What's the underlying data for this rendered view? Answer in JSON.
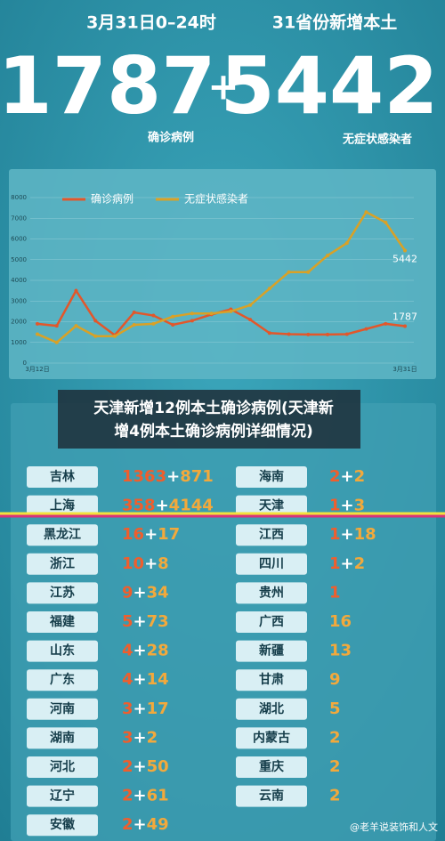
{
  "header": {
    "date": "3月31日0–24时",
    "scope": "31省份新增本土",
    "confirmed": "1787",
    "plus": "+",
    "asymptomatic": "5442",
    "confirmed_label": "确诊病例",
    "asymptomatic_label": "无症状感染者"
  },
  "chart_data": {
    "type": "line",
    "categories": [
      "3月12日",
      null,
      null,
      null,
      null,
      null,
      null,
      null,
      null,
      null,
      null,
      null,
      null,
      null,
      null,
      null,
      null,
      null,
      null,
      "3月31日"
    ],
    "series": [
      {
        "name": "确诊病例",
        "color": "#e2572b",
        "values": [
          1900,
          1800,
          3500,
          2050,
          1350,
          2450,
          2300,
          1850,
          2050,
          2350,
          2600,
          2100,
          1450,
          1400,
          1380,
          1380,
          1400,
          1650,
          1900,
          1787
        ]
      },
      {
        "name": "无症状感染者",
        "color": "#d9a126",
        "values": [
          1400,
          1000,
          1800,
          1300,
          1300,
          1850,
          1900,
          2250,
          2400,
          2400,
          2500,
          2800,
          3600,
          4400,
          4400,
          5200,
          5800,
          7300,
          6800,
          5442
        ]
      }
    ],
    "ylim": [
      0,
      8000
    ],
    "yticks": [
      0,
      1000,
      2000,
      3000,
      4000,
      5000,
      6000,
      7000,
      8000
    ],
    "grid": true
  },
  "caption": {
    "lines": [
      "天津新增12例本土确诊病例(天津新",
      "增4例本土确诊病例详细情况)"
    ]
  },
  "table": {
    "separator": "+",
    "left": [
      {
        "name": "吉林",
        "confirmed": 1363,
        "asymptomatic": 871
      },
      {
        "name": "上海",
        "confirmed": 358,
        "asymptomatic": 4144
      },
      {
        "name": "黑龙江",
        "confirmed": 16,
        "asymptomatic": 17
      },
      {
        "name": "浙江",
        "confirmed": 10,
        "asymptomatic": 8
      },
      {
        "name": "江苏",
        "confirmed": 9,
        "asymptomatic": 34
      },
      {
        "name": "福建",
        "confirmed": 5,
        "asymptomatic": 73
      },
      {
        "name": "山东",
        "confirmed": 4,
        "asymptomatic": 28
      },
      {
        "name": "广东",
        "confirmed": 4,
        "asymptomatic": 14
      },
      {
        "name": "河南",
        "confirmed": 3,
        "asymptomatic": 17
      },
      {
        "name": "湖南",
        "confirmed": 3,
        "asymptomatic": 2
      },
      {
        "name": "河北",
        "confirmed": 2,
        "asymptomatic": 50
      },
      {
        "name": "辽宁",
        "confirmed": 2,
        "asymptomatic": 61
      },
      {
        "name": "安徽",
        "confirmed": 2,
        "asymptomatic": 49
      }
    ],
    "right": [
      {
        "name": "海南",
        "confirmed": 2,
        "asymptomatic": 2
      },
      {
        "name": "天津",
        "confirmed": 1,
        "asymptomatic": 3
      },
      {
        "name": "江西",
        "confirmed": 1,
        "asymptomatic": 18
      },
      {
        "name": "四川",
        "confirmed": 1,
        "asymptomatic": 2
      },
      {
        "name": "贵州",
        "confirmed": 1,
        "asymptomatic": null
      },
      {
        "name": "广西",
        "confirmed": null,
        "asymptomatic": 16
      },
      {
        "name": "新疆",
        "confirmed": null,
        "asymptomatic": 13
      },
      {
        "name": "甘肃",
        "confirmed": null,
        "asymptomatic": 9
      },
      {
        "name": "湖北",
        "confirmed": null,
        "asymptomatic": 5
      },
      {
        "name": "内蒙古",
        "confirmed": null,
        "asymptomatic": 2
      },
      {
        "name": "重庆",
        "confirmed": null,
        "asymptomatic": 2
      },
      {
        "name": "云南",
        "confirmed": null,
        "asymptomatic": 2
      }
    ]
  },
  "watermark": "@老羊说装饰和人文"
}
